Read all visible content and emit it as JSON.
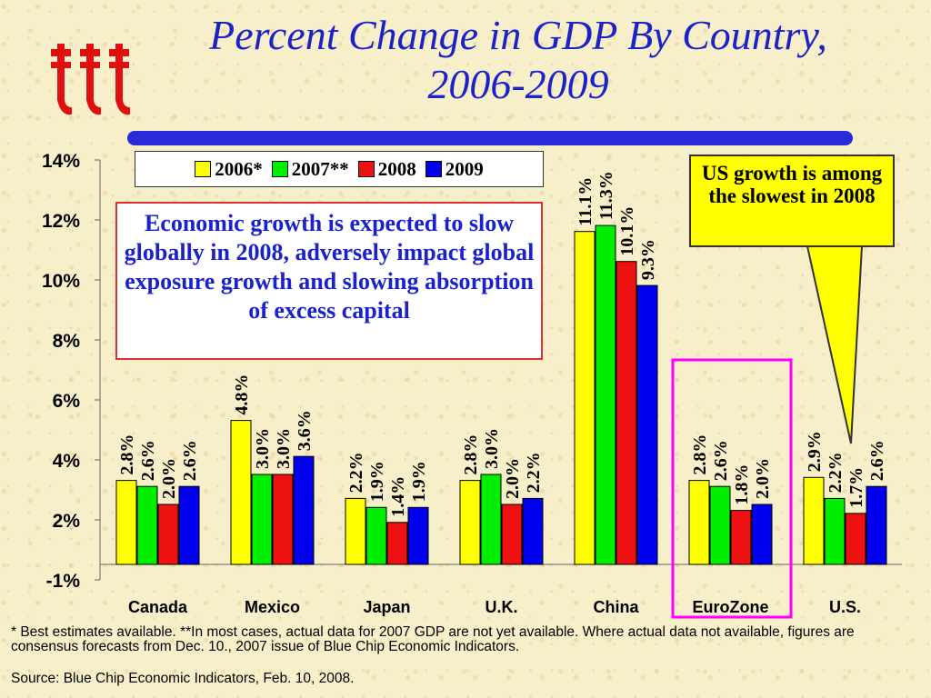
{
  "title_line1": "Percent Change in GDP By Country,",
  "title_line2": "2006-2009",
  "colors": {
    "title": "#1a22c8",
    "series": [
      "#ffff00",
      "#00ee00",
      "#ee1111",
      "#0000ee"
    ],
    "highlight": "#ff00ff",
    "callout": "#ffff00"
  },
  "callout_text": "US growth is among the slowest in 2008",
  "note_text": "Economic growth is expected to slow globally in 2008, adversely impact global exposure growth and slowing absorption of excess capital",
  "footnote": "* Best estimates available. **In most cases, actual data for 2007 GDP are not yet available. Where actual data not available, figures are consensus forecasts from Dec. 10., 2007 issue of Blue Chip Economic Indicators.",
  "source": "Source: Blue Chip Economic Indicators, Feb. 10, 2008.",
  "chart_data": {
    "type": "bar",
    "categories": [
      "Canada",
      "Mexico",
      "Japan",
      "U.K.",
      "China",
      "EuroZone",
      "U.S."
    ],
    "series": [
      {
        "name": "2006*",
        "values": [
          2.8,
          4.8,
          2.2,
          2.8,
          11.1,
          2.8,
          2.9
        ]
      },
      {
        "name": "2007**",
        "values": [
          2.6,
          3.0,
          1.9,
          3.0,
          11.3,
          2.6,
          2.2
        ]
      },
      {
        "name": "2008",
        "values": [
          2.0,
          3.0,
          1.4,
          2.0,
          10.1,
          1.8,
          1.7
        ]
      },
      {
        "name": "2009",
        "values": [
          2.6,
          3.6,
          1.9,
          2.2,
          9.3,
          2.0,
          2.6
        ]
      }
    ],
    "value_labels": [
      [
        "2.8%",
        "2.6%",
        "2.0%",
        "2.6%"
      ],
      [
        "4.8%",
        "3.0%",
        "3.0%",
        "3.6%"
      ],
      [
        "2.2%",
        "1.9%",
        "1.4%",
        "1.9%"
      ],
      [
        "2.8%",
        "3.0%",
        "2.0%",
        "2.2%"
      ],
      [
        "11.1%",
        "11.3%",
        "10.1%",
        "9.3%"
      ],
      [
        "2.8%",
        "2.6%",
        "1.8%",
        "2.0%"
      ],
      [
        "2.9%",
        "2.2%",
        "1.7%",
        "2.6%"
      ]
    ],
    "y_tick_labels": [
      "-1%",
      "2%",
      "4%",
      "6%",
      "8%",
      "10%",
      "12%",
      "14%"
    ],
    "y_tick_values": [
      -1,
      2,
      4,
      6,
      8,
      10,
      12,
      14
    ],
    "ylim": [
      -1,
      14
    ],
    "highlighted_category": "EuroZone",
    "legend_position": "top-left",
    "grid": false
  }
}
